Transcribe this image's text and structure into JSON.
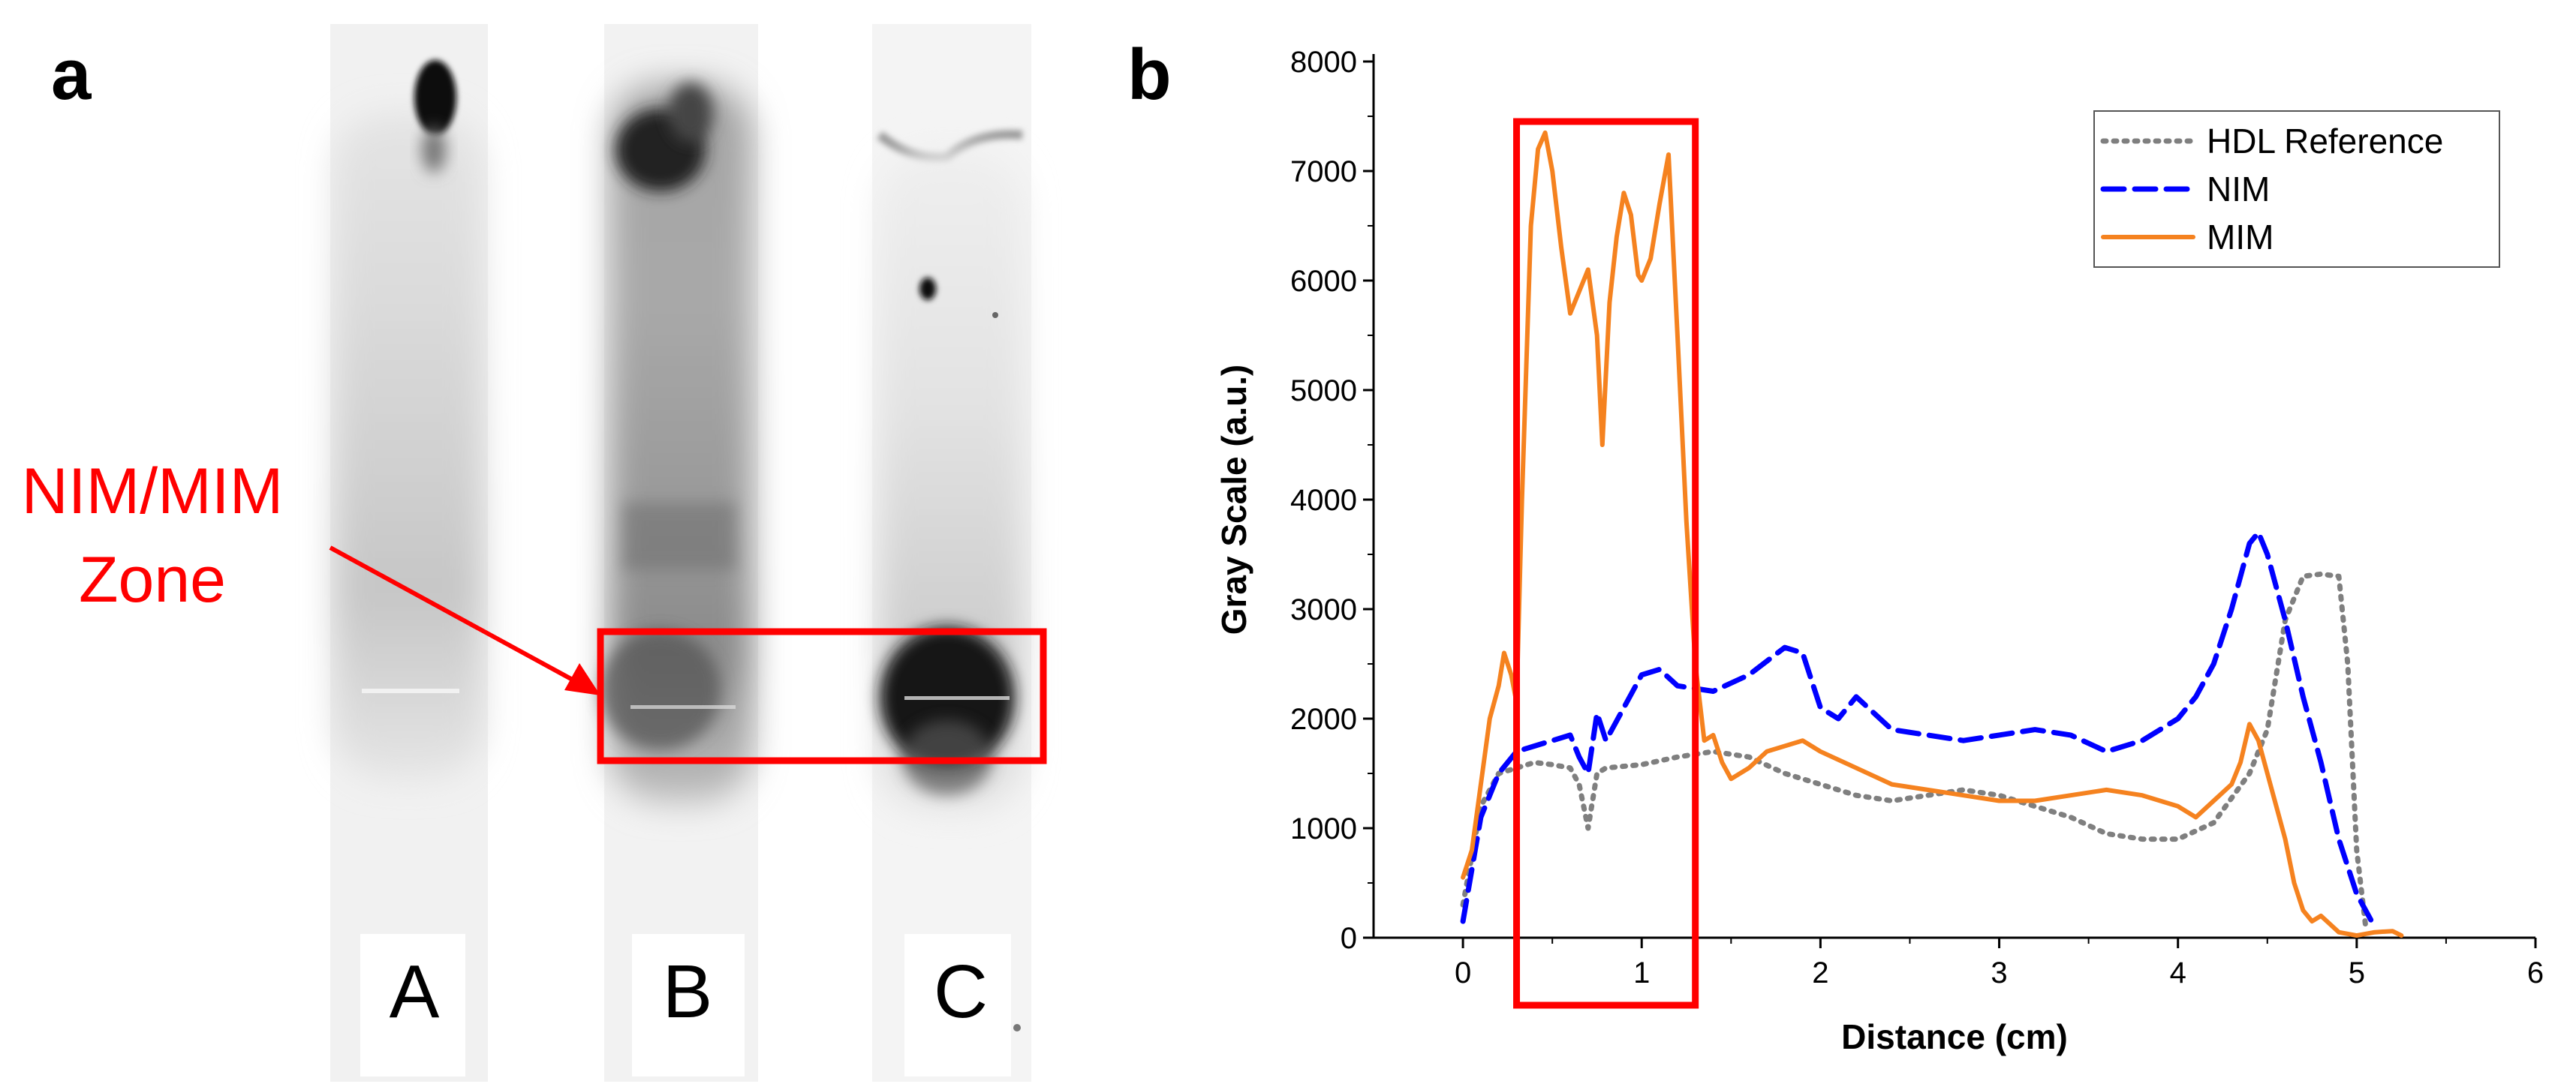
{
  "panel_a": {
    "label": "a",
    "zone_label_line1": "NIM/MIM",
    "zone_label_line2": "Zone",
    "lanes": [
      "A",
      "B",
      "C"
    ],
    "zone_color": "#ff0000"
  },
  "panel_b": {
    "label": "b"
  },
  "chart_data": {
    "type": "line",
    "xlabel": "Distance (cm)",
    "ylabel": "Gray Scale (a.u.)",
    "xlim": [
      -0.5,
      6
    ],
    "ylim": [
      0,
      8000
    ],
    "xticks": [
      0,
      1,
      2,
      3,
      4,
      5,
      6
    ],
    "yticks": [
      0,
      1000,
      2000,
      3000,
      4000,
      5000,
      6000,
      7000,
      8000
    ],
    "legend_position": "top-right",
    "highlight_x_range": [
      0.3,
      1.3
    ],
    "highlight_color": "#ff0000",
    "series": [
      {
        "name": "HDL Reference",
        "color": "#7f7f7f",
        "style": "dotted",
        "x": [
          0,
          0.1,
          0.2,
          0.3,
          0.4,
          0.5,
          0.6,
          0.65,
          0.7,
          0.75,
          0.8,
          1.0,
          1.2,
          1.4,
          1.6,
          1.8,
          2.0,
          2.2,
          2.4,
          2.6,
          2.8,
          3.0,
          3.2,
          3.4,
          3.6,
          3.8,
          4.0,
          4.2,
          4.4,
          4.5,
          4.6,
          4.7,
          4.8,
          4.9,
          4.95,
          5.0,
          5.05
        ],
        "y": [
          300,
          1200,
          1500,
          1550,
          1600,
          1580,
          1550,
          1400,
          1000,
          1500,
          1550,
          1580,
          1650,
          1700,
          1650,
          1500,
          1400,
          1300,
          1250,
          1300,
          1350,
          1300,
          1200,
          1100,
          950,
          900,
          900,
          1050,
          1500,
          1900,
          2900,
          3300,
          3320,
          3300,
          2500,
          800,
          100
        ]
      },
      {
        "name": "NIM",
        "color": "#0000ff",
        "style": "dashed",
        "x": [
          0,
          0.1,
          0.2,
          0.3,
          0.4,
          0.5,
          0.6,
          0.65,
          0.7,
          0.75,
          0.8,
          0.9,
          1.0,
          1.1,
          1.2,
          1.4,
          1.6,
          1.8,
          1.9,
          2.0,
          2.1,
          2.2,
          2.4,
          2.6,
          2.8,
          3.0,
          3.2,
          3.4,
          3.6,
          3.8,
          4.0,
          4.1,
          4.2,
          4.3,
          4.4,
          4.45,
          4.5,
          4.6,
          4.7,
          4.8,
          4.9,
          5.0,
          5.1
        ],
        "y": [
          150,
          1100,
          1500,
          1700,
          1750,
          1800,
          1850,
          1650,
          1500,
          2050,
          1800,
          2100,
          2400,
          2450,
          2300,
          2250,
          2400,
          2650,
          2600,
          2100,
          2000,
          2200,
          1900,
          1850,
          1800,
          1850,
          1900,
          1850,
          1700,
          1800,
          2000,
          2200,
          2500,
          3000,
          3600,
          3700,
          3500,
          2900,
          2200,
          1600,
          900,
          400,
          100
        ]
      },
      {
        "name": "MIM",
        "color": "#f5821f",
        "style": "solid",
        "x": [
          0,
          0.05,
          0.1,
          0.15,
          0.2,
          0.23,
          0.27,
          0.3,
          0.33,
          0.38,
          0.42,
          0.46,
          0.5,
          0.55,
          0.6,
          0.65,
          0.7,
          0.75,
          0.78,
          0.82,
          0.86,
          0.9,
          0.94,
          0.98,
          1.0,
          1.05,
          1.1,
          1.15,
          1.2,
          1.25,
          1.3,
          1.35,
          1.4,
          1.45,
          1.5,
          1.6,
          1.7,
          1.8,
          1.9,
          2.0,
          2.2,
          2.4,
          2.6,
          2.8,
          3.0,
          3.2,
          3.4,
          3.6,
          3.8,
          4.0,
          4.1,
          4.2,
          4.3,
          4.35,
          4.4,
          4.45,
          4.5,
          4.55,
          4.6,
          4.65,
          4.7,
          4.75,
          4.8,
          4.9,
          5.0,
          5.1,
          5.2,
          5.25
        ],
        "y": [
          550,
          800,
          1400,
          2000,
          2300,
          2600,
          2400,
          2150,
          4000,
          6500,
          7200,
          7350,
          7000,
          6300,
          5700,
          5900,
          6100,
          5500,
          4500,
          5800,
          6400,
          6800,
          6600,
          6050,
          6000,
          6200,
          6700,
          7150,
          5500,
          3800,
          2500,
          1800,
          1850,
          1600,
          1450,
          1550,
          1700,
          1750,
          1800,
          1700,
          1550,
          1400,
          1350,
          1300,
          1250,
          1250,
          1300,
          1350,
          1300,
          1200,
          1100,
          1250,
          1400,
          1600,
          1950,
          1800,
          1500,
          1200,
          900,
          500,
          250,
          150,
          200,
          50,
          20,
          50,
          60,
          20
        ]
      }
    ]
  }
}
